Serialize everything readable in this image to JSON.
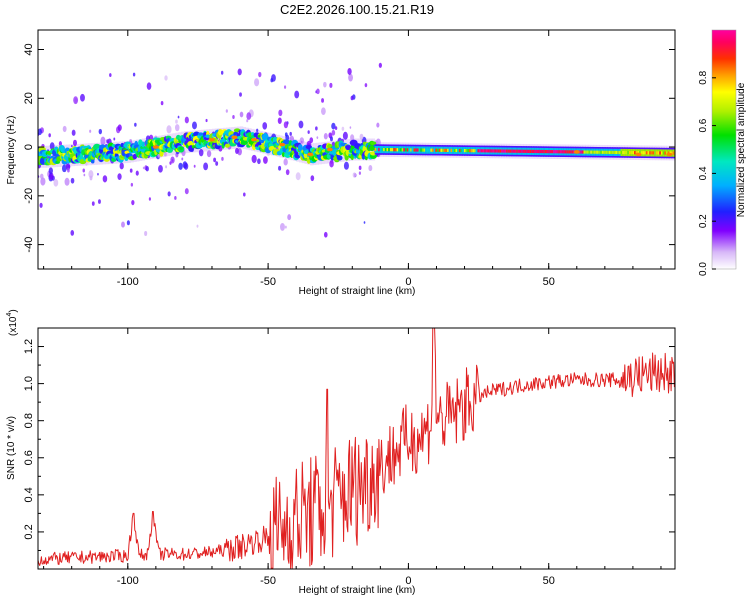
{
  "title": "C2E2.2026.100.15.21.R19",
  "chart_data": [
    {
      "type": "heatmap",
      "name": "spectrogram",
      "xlabel": "Height of straight line (km)",
      "ylabel": "Frequency (Hz)",
      "xlim": [
        -132,
        95
      ],
      "ylim": [
        -50,
        48
      ],
      "xticks": [
        -100,
        -50,
        0,
        50
      ],
      "yticks": [
        -40,
        -20,
        0,
        20,
        40
      ],
      "colorbar": {
        "label": "Normalized spectral amplitude",
        "range": [
          0,
          1
        ],
        "ticks": [
          0.0,
          0.2,
          0.4,
          0.6,
          0.8
        ],
        "tick_labels": [
          "0.0",
          "0.2",
          "0.4",
          "0.6",
          "0.8"
        ]
      },
      "band": [
        {
          "x": -130,
          "f": -4.0
        },
        {
          "x": -100,
          "f": -2.0
        },
        {
          "x": -80,
          "f": 2.0
        },
        {
          "x": -60,
          "f": 4.0
        },
        {
          "x": -45,
          "f": 0.0
        },
        {
          "x": -35,
          "f": -3.0
        },
        {
          "x": -20,
          "f": -1.0
        },
        {
          "x": -12,
          "f": -1.0
        },
        {
          "x": 95,
          "f": -2.5
        }
      ]
    },
    {
      "type": "line",
      "name": "snr",
      "xlabel": "Height of straight line (km)",
      "ylabel": "SNR (10 * v/v)",
      "multiplier_label": "(x10",
      "multiplier_exp": "4",
      "xlim": [
        -132,
        95
      ],
      "ylim": [
        0,
        1.3
      ],
      "xticks": [
        -100,
        -50,
        0,
        50
      ],
      "yticks": [
        0.2,
        0.4,
        0.6,
        0.8,
        1.0,
        1.2
      ],
      "ytick_labels": [
        "0.2",
        "0.4",
        "0.6",
        "0.8",
        "1.0",
        "1.2"
      ],
      "series": [
        {
          "name": "SNR",
          "color": "#e02020",
          "x": [
            -132,
            -120,
            -105,
            -100,
            -98,
            -96,
            -93,
            -91,
            -89,
            -80,
            -70,
            -60,
            -55,
            -50,
            -45,
            -40,
            -35,
            -30,
            -25,
            -20,
            -15,
            -10,
            -5,
            0,
            5,
            8,
            9,
            10,
            11,
            15,
            20,
            25,
            30,
            40,
            50,
            60,
            70,
            75,
            80,
            85,
            90,
            95
          ],
          "y": [
            0.05,
            0.06,
            0.07,
            0.07,
            0.3,
            0.07,
            0.08,
            0.3,
            0.08,
            0.08,
            0.09,
            0.12,
            0.15,
            0.17,
            0.22,
            0.27,
            0.3,
            0.33,
            0.38,
            0.43,
            0.48,
            0.55,
            0.63,
            0.7,
            0.72,
            0.78,
            1.28,
            0.85,
            0.8,
            0.82,
            0.88,
            0.93,
            0.96,
            0.99,
            1.01,
            1.02,
            1.02,
            1.02,
            1.04,
            1.05,
            1.06,
            1.05
          ]
        }
      ]
    }
  ]
}
